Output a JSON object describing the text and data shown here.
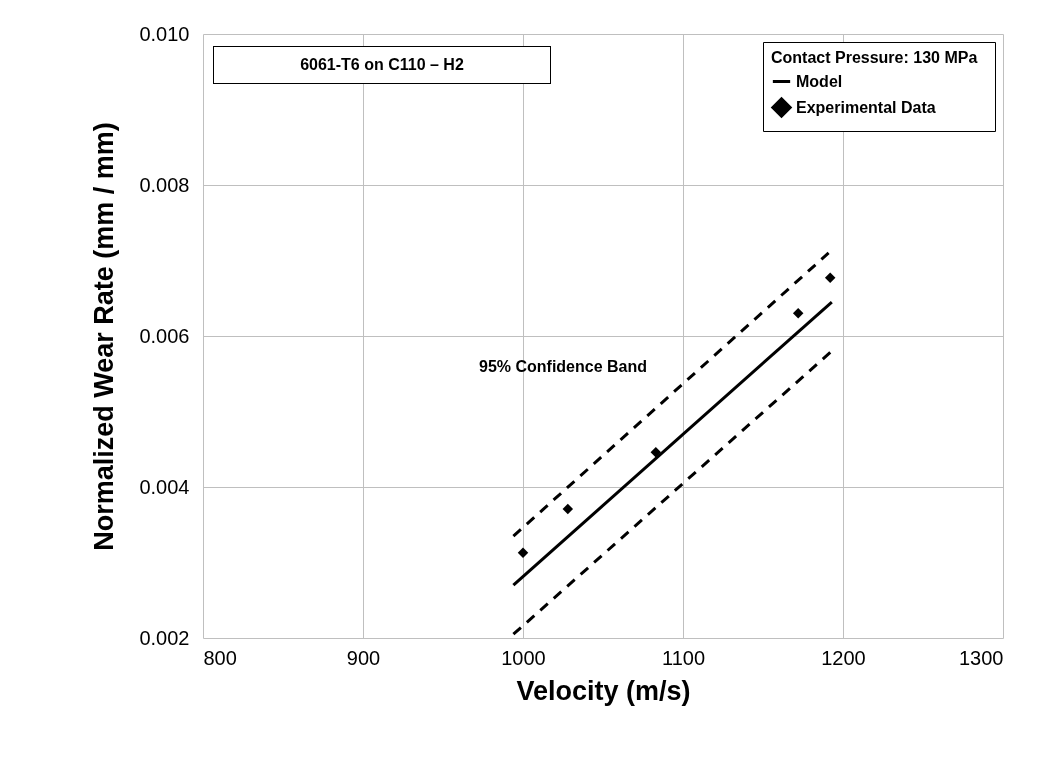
{
  "chart_data": {
    "type": "scatter",
    "xlabel": "Velocity (m/s)",
    "ylabel": "Normalized Wear Rate (mm / mm)",
    "legend_title": "Contact Pressure:   130 MPa",
    "annotations": [
      "6061-T6 on C110 – H2",
      "95% Confidence Band"
    ],
    "xlim": [
      800,
      1300
    ],
    "xticks": [
      800,
      900,
      1000,
      1100,
      1200,
      1300
    ],
    "ylim": [
      0.002,
      0.01
    ],
    "yticks": [
      0.002,
      0.004,
      0.006,
      0.008,
      {
        "value": 0.01,
        "label": "0.010"
      }
    ],
    "grid": true,
    "legend": "top right",
    "series": [
      {
        "name": "Model",
        "type": "line",
        "color": "#000000",
        "line_style": "solid",
        "x": [
          994,
          1193
        ],
        "values": [
          0.0027,
          0.00645
        ]
      },
      {
        "type": "line",
        "color": "#000000",
        "line_style": "dashed",
        "x": [
          994,
          1191
        ],
        "values": [
          0.00335,
          0.0071
        ]
      },
      {
        "type": "line",
        "color": "#000000",
        "line_style": "dashed",
        "x": [
          994,
          1193
        ],
        "values": [
          0.00205,
          0.0058
        ]
      },
      {
        "name": "Experimental Data",
        "color": "#000000",
        "marker": "diamond",
        "x": [
          1000,
          1028,
          1083,
          1172,
          1192
        ],
        "values": [
          0.00313,
          0.00371,
          0.00446,
          0.0063,
          0.00677
        ]
      }
    ]
  }
}
